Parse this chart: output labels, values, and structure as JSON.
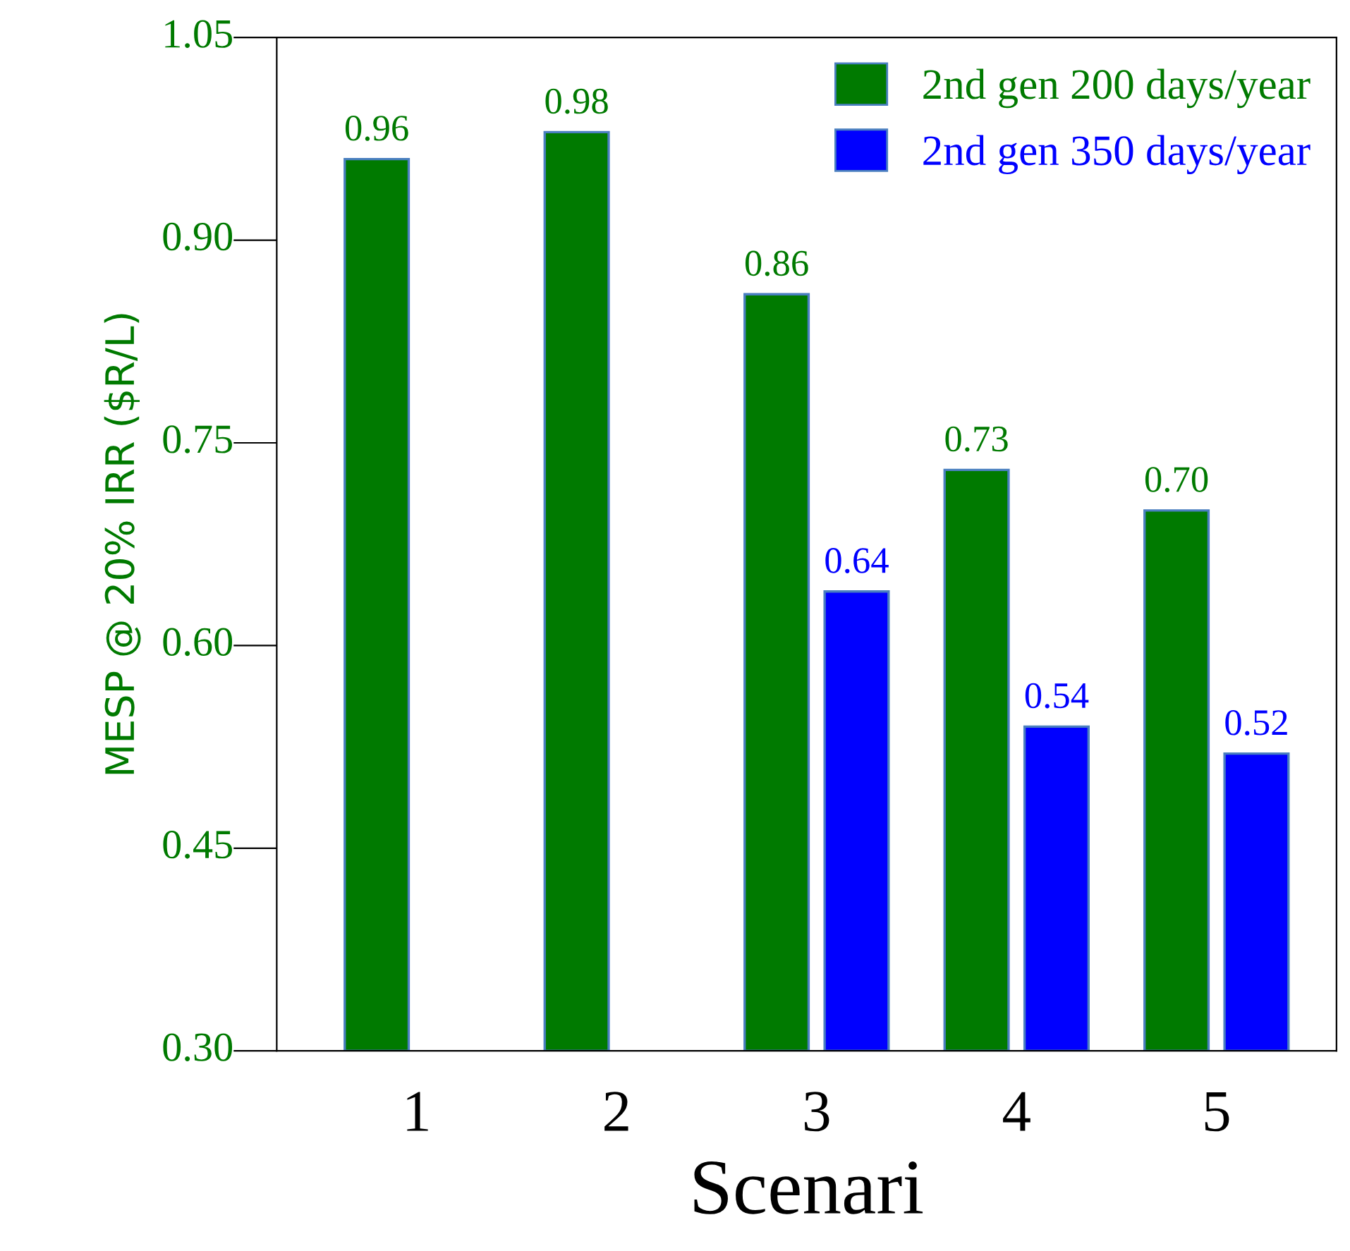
{
  "chart_data": {
    "type": "bar",
    "xlabel": "Scenari",
    "ylabel": "MESP @ 20% IRR ($R/L)",
    "categories": [
      "1",
      "2",
      "3",
      "4",
      "5"
    ],
    "series": [
      {
        "name": "2nd gen 200 days/year",
        "color": "#007a00",
        "values": [
          0.96,
          0.98,
          0.86,
          0.73,
          0.7
        ],
        "value_labels": [
          "0.96",
          "0.98",
          "0.86",
          "0.73",
          "0.70"
        ]
      },
      {
        "name": "2nd gen 350 days/year",
        "color": "#0000ff",
        "values": [
          null,
          null,
          0.64,
          0.54,
          0.52
        ],
        "value_labels": [
          null,
          null,
          "0.64",
          "0.54",
          "0.52"
        ]
      }
    ],
    "ylim": [
      0.3,
      1.05
    ],
    "yticks": [
      {
        "value": 0.3,
        "label": "0.30"
      },
      {
        "value": 0.45,
        "label": "0.45"
      },
      {
        "value": 0.6,
        "label": "0.60"
      },
      {
        "value": 0.75,
        "label": "0.75"
      },
      {
        "value": 0.9,
        "label": "0.90"
      },
      {
        "value": 1.05,
        "label": "1.05"
      }
    ],
    "grid": false,
    "legend": "top right"
  }
}
